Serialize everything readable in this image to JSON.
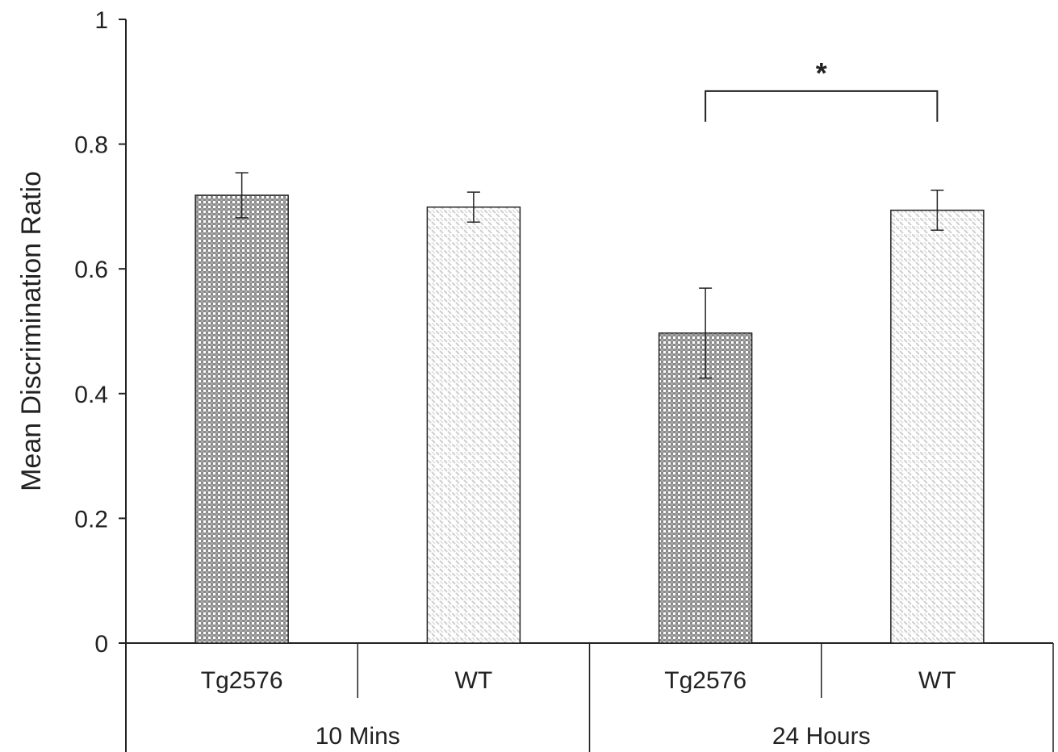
{
  "chart_data": {
    "type": "bar",
    "title": "",
    "ylabel": "Mean Discrimination Ratio",
    "ylim": [
      0,
      1
    ],
    "yticks": [
      0,
      0.2,
      0.4,
      0.6,
      0.8,
      1
    ],
    "ytick_labels": [
      "0",
      "0.2",
      "0.4",
      "0.6",
      "0.8",
      "1"
    ],
    "groups": [
      {
        "label": "10 Mins",
        "categories": [
          "Tg2576",
          "WT"
        ]
      },
      {
        "label": "24 Hours",
        "categories": [
          "Tg2576",
          "WT"
        ]
      }
    ],
    "bars": [
      {
        "group": "10 Mins",
        "category": "Tg2576",
        "value": 0.718,
        "error": 0.036,
        "pattern": "dark-checker"
      },
      {
        "group": "10 Mins",
        "category": "WT",
        "value": 0.699,
        "error": 0.024,
        "pattern": "light-diagonal"
      },
      {
        "group": "24 Hours",
        "category": "Tg2576",
        "value": 0.497,
        "error": 0.072,
        "pattern": "dark-checker"
      },
      {
        "group": "24 Hours",
        "category": "WT",
        "value": 0.694,
        "error": 0.032,
        "pattern": "light-diagonal"
      }
    ],
    "significance": {
      "from_bar": 2,
      "to_bar": 3,
      "label": "*",
      "y": 0.885
    },
    "colors": {
      "axis": "#222222",
      "dark_fill": "#8a8a8a",
      "light_fill": "#cfcfcf"
    },
    "grid": false,
    "legend": "none"
  }
}
